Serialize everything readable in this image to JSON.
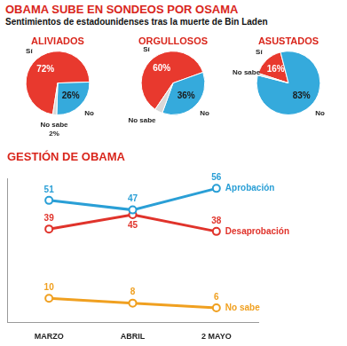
{
  "title": "OBAMA SUBE EN SONDEOS POR OSAMA",
  "subtitle": "Sentimientos de estadounidenses tras la muerte de Bin Laden",
  "chart_data": [
    {
      "type": "pie",
      "title": "ALIVIADOS",
      "categories": [
        "Sí",
        "No",
        "No sabe"
      ],
      "values": [
        72,
        26,
        2
      ],
      "value_labels": [
        "72%",
        "26%",
        "2%"
      ],
      "colors": [
        "#e8392e",
        "#35aadc",
        "#d8d8d8"
      ],
      "data_labels": true
    },
    {
      "type": "pie",
      "title": "ORGULLOSOS",
      "categories": [
        "Sí",
        "No",
        "No sabe"
      ],
      "values": [
        60,
        36,
        4
      ],
      "value_labels": [
        "60%",
        "36%",
        null
      ],
      "colors": [
        "#e8392e",
        "#35aadc",
        "#d8d8d8"
      ],
      "data_labels": true
    },
    {
      "type": "pie",
      "title": "ASUSTADOS",
      "categories": [
        "Sí",
        "No",
        "No sabe"
      ],
      "values": [
        16,
        83,
        1
      ],
      "value_labels": [
        "16%",
        "83%",
        null
      ],
      "colors": [
        "#e8392e",
        "#35aadc",
        "#d8d8d8"
      ],
      "data_labels": true
    },
    {
      "type": "line",
      "title": "GESTIÓN DE OBAMA",
      "categories": [
        "MARZO",
        "ABRIL",
        "2 MAYO"
      ],
      "series": [
        {
          "name": "Aprobación",
          "color": "#2a9fd6",
          "values": [
            51,
            47,
            56
          ]
        },
        {
          "name": "Desaprobación",
          "color": "#e0332b",
          "values": [
            39,
            45,
            38
          ]
        },
        {
          "name": "No sabe",
          "color": "#f0a020",
          "values": [
            10,
            8,
            6
          ]
        }
      ],
      "ylim": [
        0,
        60
      ],
      "grid": false,
      "data_labels": true,
      "tick_labels": "x",
      "marker": "circle",
      "line_style": "solid"
    }
  ]
}
